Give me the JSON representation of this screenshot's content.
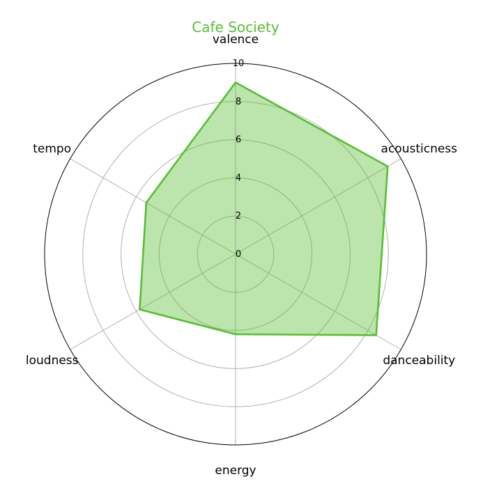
{
  "chart_data": {
    "type": "radar",
    "title": "Cafe Society",
    "axes": [
      "valence",
      "acousticness",
      "danceability",
      "energy",
      "loudness",
      "tempo"
    ],
    "series": [
      {
        "values": [
          9.0,
          9.2,
          8.5,
          4.2,
          5.8,
          5.4
        ]
      }
    ],
    "rlim": [
      0,
      10
    ],
    "rticks": [
      "0",
      "2",
      "4",
      "6",
      "8",
      "10"
    ],
    "grid": true,
    "colors": {
      "line": "#55bf30",
      "fill": "#55bf30",
      "grid": "#b0b0b0",
      "frame": "#000000"
    }
  }
}
